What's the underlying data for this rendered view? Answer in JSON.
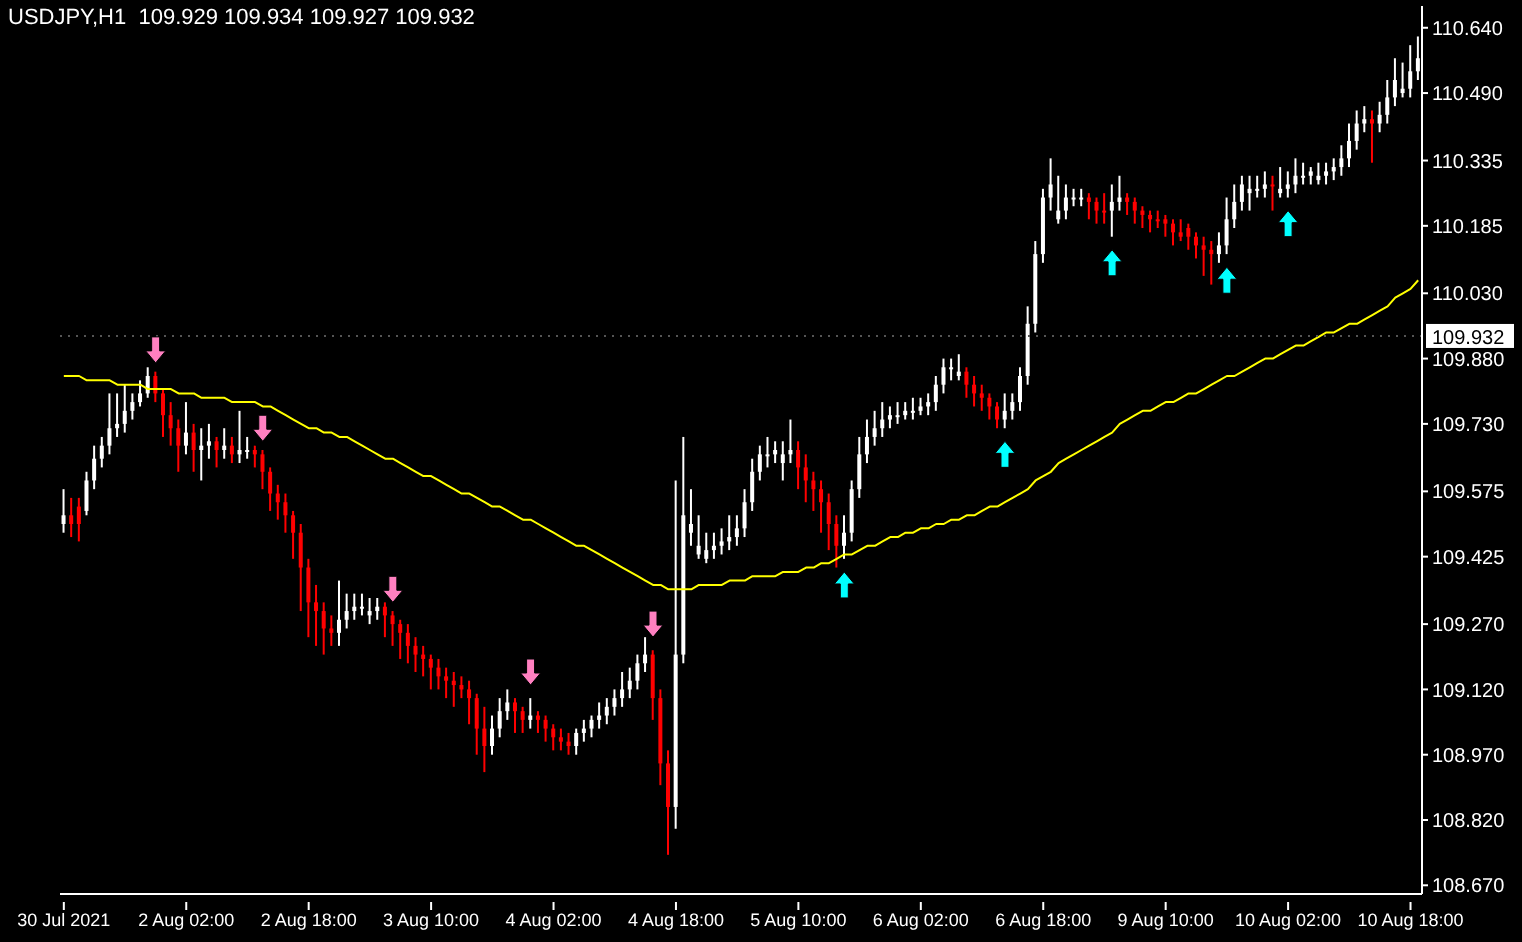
{
  "chart_data": {
    "type": "candlestick",
    "title": "USDJPY,H1  109.929 109.934 109.927 109.932",
    "categories": [
      "30 Jul 2021",
      null,
      null,
      null,
      null,
      null,
      null,
      null,
      null,
      null,
      null,
      null,
      null,
      null,
      null,
      null,
      "2 Aug 02:00",
      null,
      null,
      null,
      null,
      null,
      null,
      null,
      null,
      null,
      null,
      null,
      null,
      null,
      null,
      null,
      "2 Aug 18:00",
      null,
      null,
      null,
      null,
      null,
      null,
      null,
      null,
      null,
      null,
      null,
      null,
      null,
      null,
      null,
      "3 Aug 10:00",
      null,
      null,
      null,
      null,
      null,
      null,
      null,
      null,
      null,
      null,
      null,
      null,
      null,
      null,
      null,
      "4 Aug 02:00",
      null,
      null,
      null,
      null,
      null,
      null,
      null,
      null,
      null,
      null,
      null,
      null,
      null,
      null,
      null,
      "4 Aug 18:00",
      null,
      null,
      null,
      null,
      null,
      null,
      null,
      null,
      null,
      null,
      null,
      null,
      null,
      null,
      null,
      "5 Aug 10:00",
      null,
      null,
      null,
      null,
      null,
      null,
      null,
      null,
      null,
      null,
      null,
      null,
      null,
      null,
      null,
      "6 Aug 02:00",
      null,
      null,
      null,
      null,
      null,
      null,
      null,
      null,
      null,
      null,
      null,
      null,
      null,
      null,
      null,
      "6 Aug 18:00",
      null,
      null,
      null,
      null,
      null,
      null,
      null,
      null,
      null,
      null,
      null,
      null,
      null,
      null,
      null,
      "9 Aug 10:00",
      null,
      null,
      null,
      null,
      null,
      null,
      null,
      null,
      null,
      null,
      null,
      null,
      null,
      null,
      null,
      "10 Aug 02:00",
      null,
      null,
      null,
      null,
      null,
      null,
      null,
      null,
      null,
      null,
      null,
      null,
      null,
      null,
      null,
      "10 Aug 18:00",
      null
    ],
    "ohlc": [
      [
        109.5,
        109.58,
        109.48,
        109.52
      ],
      [
        109.52,
        109.56,
        109.47,
        109.5
      ],
      [
        109.54,
        109.56,
        109.46,
        109.5
      ],
      [
        109.53,
        109.62,
        109.52,
        109.6
      ],
      [
        109.6,
        109.68,
        109.58,
        109.65
      ],
      [
        109.65,
        109.7,
        109.63,
        109.68
      ],
      [
        109.68,
        109.8,
        109.66,
        109.72
      ],
      [
        109.72,
        109.8,
        109.7,
        109.73
      ],
      [
        109.73,
        109.82,
        109.71,
        109.76
      ],
      [
        109.76,
        109.8,
        109.74,
        109.78
      ],
      [
        109.78,
        109.83,
        109.77,
        109.8
      ],
      [
        109.8,
        109.86,
        109.79,
        109.84
      ],
      [
        109.84,
        109.85,
        109.78,
        109.8
      ],
      [
        109.8,
        109.81,
        109.7,
        109.75
      ],
      [
        109.75,
        109.78,
        109.68,
        109.72
      ],
      [
        109.72,
        109.74,
        109.62,
        109.68
      ],
      [
        109.68,
        109.78,
        109.66,
        109.71
      ],
      [
        109.71,
        109.73,
        109.62,
        109.67
      ],
      [
        109.67,
        109.72,
        109.6,
        109.68
      ],
      [
        109.68,
        109.73,
        109.65,
        109.69
      ],
      [
        109.69,
        109.7,
        109.63,
        109.67
      ],
      [
        109.67,
        109.72,
        109.65,
        109.68
      ],
      [
        109.68,
        109.7,
        109.64,
        109.66
      ],
      [
        109.66,
        109.76,
        109.64,
        109.67
      ],
      [
        109.67,
        109.7,
        109.65,
        109.67
      ],
      [
        109.67,
        109.68,
        109.63,
        109.66
      ],
      [
        109.66,
        109.67,
        109.58,
        109.62
      ],
      [
        109.62,
        109.63,
        109.53,
        109.57
      ],
      [
        109.57,
        109.59,
        109.51,
        109.55
      ],
      [
        109.55,
        109.57,
        109.48,
        109.52
      ],
      [
        109.52,
        109.53,
        109.42,
        109.48
      ],
      [
        109.48,
        109.5,
        109.3,
        109.4
      ],
      [
        109.4,
        109.42,
        109.24,
        109.32
      ],
      [
        109.32,
        109.36,
        109.22,
        109.3
      ],
      [
        109.3,
        109.32,
        109.2,
        109.26
      ],
      [
        109.26,
        109.29,
        109.22,
        109.25
      ],
      [
        109.25,
        109.37,
        109.22,
        109.28
      ],
      [
        109.28,
        109.34,
        109.26,
        109.3
      ],
      [
        109.3,
        109.34,
        109.28,
        109.31
      ],
      [
        109.31,
        109.34,
        109.29,
        109.31
      ],
      [
        109.29,
        109.33,
        109.27,
        109.3
      ],
      [
        109.3,
        109.33,
        109.28,
        109.31
      ],
      [
        109.31,
        109.32,
        109.24,
        109.29
      ],
      [
        109.29,
        109.3,
        109.22,
        109.27
      ],
      [
        109.27,
        109.28,
        109.19,
        109.25
      ],
      [
        109.25,
        109.27,
        109.18,
        109.22
      ],
      [
        109.22,
        109.24,
        109.16,
        109.2
      ],
      [
        109.2,
        109.22,
        109.15,
        109.19
      ],
      [
        109.19,
        109.2,
        109.12,
        109.17
      ],
      [
        109.17,
        109.19,
        109.12,
        109.15
      ],
      [
        109.15,
        109.17,
        109.1,
        109.14
      ],
      [
        109.14,
        109.16,
        109.08,
        109.13
      ],
      [
        109.13,
        109.15,
        109.1,
        109.12
      ],
      [
        109.12,
        109.14,
        109.04,
        109.1
      ],
      [
        109.1,
        109.11,
        108.97,
        109.03
      ],
      [
        109.03,
        109.08,
        108.93,
        108.99
      ],
      [
        108.99,
        109.06,
        108.97,
        109.03
      ],
      [
        109.03,
        109.1,
        109.01,
        109.07
      ],
      [
        109.07,
        109.12,
        109.05,
        109.09
      ],
      [
        109.09,
        109.1,
        109.02,
        109.07
      ],
      [
        109.07,
        109.08,
        109.02,
        109.05
      ],
      [
        109.05,
        109.1,
        109.03,
        109.06
      ],
      [
        109.06,
        109.07,
        109.02,
        109.05
      ],
      [
        109.05,
        109.06,
        109.0,
        109.03
      ],
      [
        109.03,
        109.04,
        108.98,
        109.01
      ],
      [
        109.01,
        109.03,
        108.98,
        109.0
      ],
      [
        109.0,
        109.02,
        108.97,
        108.99
      ],
      [
        108.99,
        109.03,
        108.97,
        109.02
      ],
      [
        109.02,
        109.05,
        109.0,
        109.03
      ],
      [
        109.03,
        109.06,
        109.01,
        109.05
      ],
      [
        109.05,
        109.09,
        109.03,
        109.06
      ],
      [
        109.06,
        109.1,
        109.04,
        109.08
      ],
      [
        109.08,
        109.12,
        109.06,
        109.1
      ],
      [
        109.1,
        109.16,
        109.08,
        109.12
      ],
      [
        109.12,
        109.17,
        109.1,
        109.14
      ],
      [
        109.14,
        109.2,
        109.12,
        109.18
      ],
      [
        109.18,
        109.24,
        109.16,
        109.2
      ],
      [
        109.2,
        109.21,
        109.05,
        109.1
      ],
      [
        109.1,
        109.12,
        108.9,
        108.95
      ],
      [
        108.95,
        108.98,
        108.74,
        108.85
      ],
      [
        108.85,
        109.6,
        108.8,
        109.2
      ],
      [
        109.2,
        109.7,
        109.18,
        109.52
      ],
      [
        109.48,
        109.58,
        109.45,
        109.5
      ],
      [
        109.43,
        109.52,
        109.42,
        109.45
      ],
      [
        109.42,
        109.48,
        109.41,
        109.44
      ],
      [
        109.44,
        109.48,
        109.42,
        109.45
      ],
      [
        109.45,
        109.49,
        109.43,
        109.46
      ],
      [
        109.46,
        109.52,
        109.44,
        109.47
      ],
      [
        109.47,
        109.52,
        109.45,
        109.49
      ],
      [
        109.49,
        109.58,
        109.47,
        109.55
      ],
      [
        109.55,
        109.65,
        109.53,
        109.62
      ],
      [
        109.62,
        109.68,
        109.6,
        109.66
      ],
      [
        109.66,
        109.7,
        109.63,
        109.66
      ],
      [
        109.66,
        109.69,
        109.64,
        109.67
      ],
      [
        109.64,
        109.69,
        109.6,
        109.66
      ],
      [
        109.66,
        109.74,
        109.64,
        109.67
      ],
      [
        109.67,
        109.69,
        109.58,
        109.63
      ],
      [
        109.63,
        109.66,
        109.55,
        109.6
      ],
      [
        109.6,
        109.62,
        109.53,
        109.58
      ],
      [
        109.58,
        109.6,
        109.48,
        109.55
      ],
      [
        109.55,
        109.57,
        109.44,
        109.5
      ],
      [
        109.5,
        109.52,
        109.4,
        109.45
      ],
      [
        109.45,
        109.52,
        109.42,
        109.48
      ],
      [
        109.48,
        109.6,
        109.46,
        109.58
      ],
      [
        109.58,
        109.7,
        109.56,
        109.66
      ],
      [
        109.66,
        109.74,
        109.64,
        109.7
      ],
      [
        109.7,
        109.76,
        109.68,
        109.72
      ],
      [
        109.72,
        109.78,
        109.7,
        109.74
      ],
      [
        109.74,
        109.77,
        109.72,
        109.75
      ],
      [
        109.75,
        109.78,
        109.73,
        109.75
      ],
      [
        109.75,
        109.78,
        109.74,
        109.76
      ],
      [
        109.76,
        109.79,
        109.74,
        109.76
      ],
      [
        109.76,
        109.79,
        109.75,
        109.77
      ],
      [
        109.77,
        109.8,
        109.75,
        109.78
      ],
      [
        109.78,
        109.84,
        109.76,
        109.82
      ],
      [
        109.82,
        109.88,
        109.8,
        109.86
      ],
      [
        109.86,
        109.88,
        109.83,
        109.86
      ],
      [
        109.84,
        109.89,
        109.83,
        109.85
      ],
      [
        109.85,
        109.86,
        109.79,
        109.82
      ],
      [
        109.82,
        109.84,
        109.77,
        109.8
      ],
      [
        109.8,
        109.82,
        109.76,
        109.79
      ],
      [
        109.79,
        109.8,
        109.74,
        109.77
      ],
      [
        109.77,
        109.78,
        109.72,
        109.74
      ],
      [
        109.74,
        109.8,
        109.72,
        109.76
      ],
      [
        109.76,
        109.8,
        109.74,
        109.78
      ],
      [
        109.78,
        109.86,
        109.76,
        109.84
      ],
      [
        109.84,
        110.0,
        109.82,
        109.96
      ],
      [
        109.96,
        110.15,
        109.94,
        110.12
      ],
      [
        110.12,
        110.27,
        110.1,
        110.25
      ],
      [
        110.25,
        110.34,
        110.22,
        110.28
      ],
      [
        110.2,
        110.3,
        110.19,
        110.22
      ],
      [
        110.22,
        110.28,
        110.2,
        110.25
      ],
      [
        110.25,
        110.27,
        110.23,
        110.25
      ],
      [
        110.25,
        110.27,
        110.23,
        110.25
      ],
      [
        110.25,
        110.26,
        110.2,
        110.24
      ],
      [
        110.24,
        110.25,
        110.19,
        110.22
      ],
      [
        110.22,
        110.26,
        110.19,
        110.22
      ],
      [
        110.22,
        110.28,
        110.16,
        110.24
      ],
      [
        110.24,
        110.3,
        110.22,
        110.25
      ],
      [
        110.25,
        110.26,
        110.21,
        110.24
      ],
      [
        110.24,
        110.25,
        110.19,
        110.22
      ],
      [
        110.22,
        110.23,
        110.18,
        110.21
      ],
      [
        110.21,
        110.22,
        110.17,
        110.2
      ],
      [
        110.2,
        110.22,
        110.18,
        110.2
      ],
      [
        110.2,
        110.21,
        110.16,
        110.19
      ],
      [
        110.19,
        110.2,
        110.14,
        110.17
      ],
      [
        110.17,
        110.2,
        110.15,
        110.16
      ],
      [
        110.18,
        110.19,
        110.13,
        110.16
      ],
      [
        110.16,
        110.17,
        110.11,
        110.14
      ],
      [
        110.14,
        110.16,
        110.07,
        110.13
      ],
      [
        110.13,
        110.15,
        110.05,
        110.12
      ],
      [
        110.12,
        110.17,
        110.1,
        110.14
      ],
      [
        110.14,
        110.25,
        110.12,
        110.2
      ],
      [
        110.2,
        110.28,
        110.18,
        110.24
      ],
      [
        110.24,
        110.3,
        110.22,
        110.28
      ],
      [
        110.26,
        110.3,
        110.22,
        110.27
      ],
      [
        110.27,
        110.3,
        110.25,
        110.27
      ],
      [
        110.27,
        110.31,
        110.25,
        110.28
      ],
      [
        110.28,
        110.3,
        110.22,
        110.28
      ],
      [
        110.26,
        110.32,
        110.25,
        110.27
      ],
      [
        110.27,
        110.31,
        110.25,
        110.28
      ],
      [
        110.28,
        110.34,
        110.26,
        110.3
      ],
      [
        110.3,
        110.33,
        110.28,
        110.3
      ],
      [
        110.3,
        110.32,
        110.28,
        110.31
      ],
      [
        110.29,
        110.33,
        110.28,
        110.3
      ],
      [
        110.3,
        110.33,
        110.28,
        110.31
      ],
      [
        110.31,
        110.34,
        110.29,
        110.32
      ],
      [
        110.32,
        110.37,
        110.3,
        110.34
      ],
      [
        110.34,
        110.42,
        110.32,
        110.38
      ],
      [
        110.38,
        110.45,
        110.36,
        110.42
      ],
      [
        110.42,
        110.46,
        110.4,
        110.43
      ],
      [
        110.43,
        110.45,
        110.33,
        110.42
      ],
      [
        110.42,
        110.47,
        110.4,
        110.44
      ],
      [
        110.44,
        110.52,
        110.42,
        110.48
      ],
      [
        110.48,
        110.57,
        110.46,
        110.52
      ],
      [
        110.49,
        110.56,
        110.48,
        110.5
      ],
      [
        110.5,
        110.6,
        110.48,
        110.54
      ],
      [
        110.54,
        110.62,
        110.52,
        110.57
      ]
    ],
    "colors": [
      "#ffffff",
      "#ff0000",
      "#ff0000",
      "#ffffff",
      "#ffffff",
      "#ffffff",
      "#ffffff",
      "#ffffff",
      "#ffffff",
      "#ffffff",
      "#ffffff",
      "#ffffff",
      "#ff0000",
      "#ff0000",
      "#ff0000",
      "#ff0000",
      "#ffffff",
      "#ff0000",
      "#ffffff",
      "#ffffff",
      "#ff0000",
      "#ffffff",
      "#ff0000",
      "#ffffff",
      "#ffffff",
      "#ff0000",
      "#ff0000",
      "#ff0000",
      "#ff0000",
      "#ff0000",
      "#ff0000",
      "#ff0000",
      "#ff0000",
      "#ff0000",
      "#ff0000",
      "#ff0000",
      "#ffffff",
      "#ffffff",
      "#ffffff",
      "#ffffff",
      "#ffffff",
      "#ffffff",
      "#ff0000",
      "#ff0000",
      "#ff0000",
      "#ff0000",
      "#ff0000",
      "#ff0000",
      "#ff0000",
      "#ff0000",
      "#ff0000",
      "#ff0000",
      "#ff0000",
      "#ff0000",
      "#ff0000",
      "#ff0000",
      "#ffffff",
      "#ffffff",
      "#ffffff",
      "#ff0000",
      "#ff0000",
      "#ffffff",
      "#ff0000",
      "#ff0000",
      "#ff0000",
      "#ff0000",
      "#ff0000",
      "#ffffff",
      "#ffffff",
      "#ffffff",
      "#ffffff",
      "#ffffff",
      "#ffffff",
      "#ffffff",
      "#ffffff",
      "#ffffff",
      "#ffffff",
      "#ff0000",
      "#ff0000",
      "#ff0000",
      "#ffffff",
      "#ffffff",
      "#ffffff",
      "#ffffff",
      "#ffffff",
      "#ffffff",
      "#ffffff",
      "#ffffff",
      "#ffffff",
      "#ffffff",
      "#ffffff",
      "#ffffff",
      "#ffffff",
      "#ffffff",
      "#ffffff",
      "#ffffff",
      "#ff0000",
      "#ff0000",
      "#ff0000",
      "#ff0000",
      "#ff0000",
      "#ff0000",
      "#ffffff",
      "#ffffff",
      "#ffffff",
      "#ffffff",
      "#ffffff",
      "#ffffff",
      "#ffffff",
      "#ffffff",
      "#ffffff",
      "#ffffff",
      "#ffffff",
      "#ffffff",
      "#ffffff",
      "#ffffff",
      "#ffffff",
      "#ffffff",
      "#ff0000",
      "#ff0000",
      "#ff0000",
      "#ff0000",
      "#ff0000",
      "#ffffff",
      "#ffffff",
      "#ffffff",
      "#ffffff",
      "#ffffff",
      "#ffffff",
      "#ffffff",
      "#ffffff",
      "#ffffff",
      "#ffffff",
      "#ffffff",
      "#ff0000",
      "#ff0000",
      "#ff0000",
      "#ffffff",
      "#ffffff",
      "#ff0000",
      "#ff0000",
      "#ff0000",
      "#ff0000",
      "#ff0000",
      "#ff0000",
      "#ff0000",
      "#ff0000",
      "#ff0000",
      "#ff0000",
      "#ff0000",
      "#ff0000",
      "#ffffff",
      "#ffffff",
      "#ffffff",
      "#ffffff",
      "#ffffff",
      "#ffffff",
      "#ffffff",
      "#ff0000",
      "#ffffff",
      "#ffffff",
      "#ffffff",
      "#ffffff",
      "#ffffff",
      "#ffffff",
      "#ffffff",
      "#ffffff",
      "#ffffff",
      "#ffffff",
      "#ffffff",
      "#ffffff",
      "#ff0000",
      "#ffffff",
      "#ffffff",
      "#ffffff",
      "#ffffff",
      "#ffffff",
      "#ffffff"
    ],
    "series": [
      {
        "type": "line",
        "color": "#ffff00",
        "values": [
          109.84,
          109.84,
          109.84,
          109.83,
          109.83,
          109.83,
          109.83,
          109.82,
          109.82,
          109.82,
          109.82,
          109.81,
          109.81,
          109.81,
          109.81,
          109.8,
          109.8,
          109.8,
          109.79,
          109.79,
          109.79,
          109.79,
          109.78,
          109.78,
          109.78,
          109.78,
          109.77,
          109.77,
          109.76,
          109.75,
          109.74,
          109.73,
          109.72,
          109.72,
          109.71,
          109.71,
          109.7,
          109.7,
          109.69,
          109.68,
          109.67,
          109.66,
          109.65,
          109.65,
          109.64,
          109.63,
          109.62,
          109.61,
          109.61,
          109.6,
          109.59,
          109.58,
          109.57,
          109.57,
          109.56,
          109.55,
          109.54,
          109.54,
          109.53,
          109.52,
          109.51,
          109.51,
          109.5,
          109.49,
          109.48,
          109.47,
          109.46,
          109.45,
          109.45,
          109.44,
          109.43,
          109.42,
          109.41,
          109.4,
          109.39,
          109.38,
          109.37,
          109.36,
          109.36,
          109.35,
          109.35,
          109.35,
          109.35,
          109.36,
          109.36,
          109.36,
          109.36,
          109.37,
          109.37,
          109.37,
          109.38,
          109.38,
          109.38,
          109.38,
          109.39,
          109.39,
          109.39,
          109.4,
          109.4,
          109.41,
          109.41,
          109.42,
          109.43,
          109.43,
          109.44,
          109.45,
          109.45,
          109.46,
          109.47,
          109.47,
          109.48,
          109.48,
          109.49,
          109.49,
          109.5,
          109.5,
          109.51,
          109.51,
          109.52,
          109.52,
          109.53,
          109.54,
          109.54,
          109.55,
          109.56,
          109.57,
          109.58,
          109.6,
          109.61,
          109.62,
          109.64,
          109.65,
          109.66,
          109.67,
          109.68,
          109.69,
          109.7,
          109.71,
          109.73,
          109.74,
          109.75,
          109.76,
          109.76,
          109.77,
          109.78,
          109.78,
          109.79,
          109.8,
          109.8,
          109.81,
          109.82,
          109.83,
          109.84,
          109.84,
          109.85,
          109.86,
          109.87,
          109.88,
          109.88,
          109.89,
          109.9,
          109.91,
          109.91,
          109.92,
          109.93,
          109.94,
          109.94,
          109.95,
          109.96,
          109.96,
          109.97,
          109.98,
          109.99,
          110.0,
          110.02,
          110.03,
          110.04,
          110.06
        ]
      },
      {
        "type": "scatter",
        "color": "#ff80c0",
        "values": [
          null,
          null,
          null,
          null,
          null,
          null,
          null,
          null,
          null,
          null,
          null,
          null,
          109.9,
          null,
          null,
          null,
          null,
          null,
          null,
          null,
          null,
          null,
          null,
          null,
          null,
          null,
          109.72,
          null,
          null,
          null,
          null,
          null,
          null,
          null,
          null,
          null,
          null,
          null,
          null,
          null,
          null,
          null,
          null,
          109.35,
          null,
          null,
          null,
          null,
          null,
          null,
          null,
          null,
          null,
          null,
          null,
          null,
          null,
          null,
          null,
          null,
          null,
          109.16,
          null,
          null,
          null,
          null,
          null,
          null,
          null,
          null,
          null,
          null,
          null,
          null,
          null,
          null,
          null,
          109.27,
          null,
          null,
          null,
          null,
          null,
          null,
          null,
          null,
          null,
          null,
          null,
          null,
          null,
          null,
          null,
          null,
          null,
          null,
          null,
          null,
          null,
          null,
          null,
          null,
          null,
          null,
          null,
          null,
          null,
          null,
          null,
          null,
          null,
          null,
          null,
          null,
          null,
          null,
          null,
          null,
          null,
          null,
          null,
          null,
          null,
          null,
          null,
          null,
          null,
          null,
          null,
          null,
          null,
          null,
          null,
          null,
          null,
          null,
          null,
          null,
          null,
          null,
          null,
          null,
          null,
          null,
          null,
          null,
          null,
          null,
          null,
          null,
          null,
          null,
          null,
          null,
          null,
          null,
          null,
          null,
          null,
          null,
          null,
          null,
          null,
          null,
          null,
          null,
          null,
          null,
          null,
          null,
          null,
          null,
          null,
          null,
          null,
          null,
          null,
          null
        ]
      },
      {
        "type": "scatter",
        "color": "#00ffff",
        "values": [
          null,
          null,
          null,
          null,
          null,
          null,
          null,
          null,
          null,
          null,
          null,
          null,
          null,
          null,
          null,
          null,
          null,
          null,
          null,
          null,
          null,
          null,
          null,
          null,
          null,
          null,
          null,
          null,
          null,
          null,
          null,
          null,
          null,
          null,
          null,
          null,
          null,
          null,
          null,
          null,
          null,
          null,
          null,
          null,
          null,
          null,
          null,
          null,
          null,
          null,
          null,
          null,
          null,
          null,
          null,
          null,
          null,
          null,
          null,
          null,
          null,
          null,
          null,
          null,
          null,
          null,
          null,
          null,
          null,
          null,
          null,
          null,
          null,
          null,
          null,
          null,
          null,
          null,
          null,
          null,
          null,
          null,
          null,
          null,
          null,
          null,
          null,
          null,
          null,
          null,
          null,
          null,
          null,
          null,
          null,
          null,
          null,
          null,
          null,
          null,
          null,
          null,
          109.36,
          null,
          null,
          null,
          null,
          null,
          null,
          null,
          null,
          null,
          null,
          null,
          null,
          null,
          null,
          null,
          null,
          null,
          null,
          null,
          null,
          109.66,
          null,
          null,
          null,
          null,
          null,
          null,
          null,
          null,
          null,
          null,
          null,
          null,
          null,
          110.1,
          null,
          null,
          null,
          null,
          null,
          null,
          null,
          null,
          null,
          null,
          null,
          null,
          null,
          null,
          110.06,
          null,
          null,
          null,
          null,
          null,
          null,
          null,
          110.19,
          null,
          null,
          null,
          null,
          null,
          null,
          null,
          null,
          null,
          null,
          null,
          null,
          null,
          null,
          null,
          null,
          null
        ]
      }
    ],
    "ylim": [
      108.65,
      110.69
    ],
    "yticks": [
      {
        "value": 110.64,
        "label": "110.640"
      },
      {
        "value": 110.49,
        "label": "110.490"
      },
      {
        "value": 110.335,
        "label": "110.335"
      },
      {
        "value": 110.185,
        "label": "110.185"
      },
      {
        "value": 110.03,
        "label": "110.030"
      },
      {
        "value": 109.88,
        "label": "109.880"
      },
      {
        "value": 109.73,
        "label": "109.730"
      },
      {
        "value": 109.575,
        "label": "109.575"
      },
      {
        "value": 109.425,
        "label": "109.425"
      },
      {
        "value": 109.27,
        "label": "109.270"
      },
      {
        "value": 109.12,
        "label": "109.120"
      },
      {
        "value": 108.97,
        "label": "108.970"
      },
      {
        "value": 108.82,
        "label": "108.820"
      },
      {
        "value": 108.67,
        "label": "108.670"
      }
    ],
    "ref_lines": [
      {
        "axis": "y",
        "value": 109.932,
        "label": "109.932"
      }
    ]
  }
}
